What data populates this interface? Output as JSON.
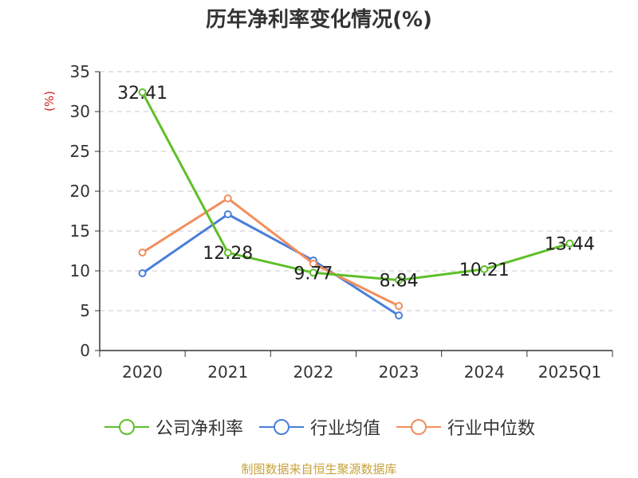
{
  "chart_data": {
    "type": "line",
    "title": "历年净利率变化情况(%)",
    "ylabel": "(%)",
    "xlabel": "",
    "categories": [
      "2020",
      "2021",
      "2022",
      "2023",
      "2024",
      "2025Q1"
    ],
    "ylim": [
      0,
      35
    ],
    "yticks": [
      0,
      5,
      10,
      15,
      20,
      25,
      30,
      35
    ],
    "grid": true,
    "legend_position": "bottom",
    "series": [
      {
        "name": "公司净利率",
        "values": [
          32.41,
          12.28,
          9.77,
          8.84,
          10.21,
          13.44
        ],
        "color": "#5fbf2a",
        "labels": [
          "32.41",
          "12.28",
          "9.77",
          "8.84",
          "10.21",
          "13.44"
        ]
      },
      {
        "name": "行业均值",
        "values": [
          9.7,
          17.1,
          11.3,
          4.4,
          null,
          null
        ],
        "color": "#4a7fd8"
      },
      {
        "name": "行业中位数",
        "values": [
          12.3,
          19.1,
          10.9,
          5.6,
          null,
          null
        ],
        "color": "#f28e5c"
      }
    ]
  },
  "source": "制图数据来自恒生聚源数据库"
}
